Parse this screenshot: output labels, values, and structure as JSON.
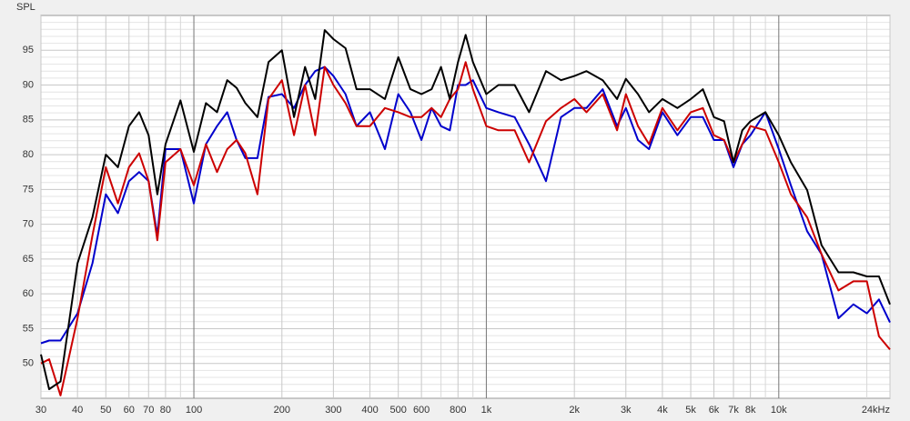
{
  "chart_data": {
    "type": "line",
    "ylabel": "SPL",
    "xscale": "log",
    "grid": true,
    "x": [
      30,
      32,
      35,
      40,
      45,
      50,
      55,
      60,
      65,
      70,
      75,
      80,
      90,
      100,
      110,
      120,
      130,
      140,
      150,
      165,
      180,
      200,
      220,
      240,
      260,
      280,
      300,
      330,
      360,
      400,
      450,
      500,
      550,
      600,
      650,
      700,
      750,
      800,
      850,
      900,
      1000,
      1100,
      1250,
      1400,
      1600,
      1800,
      2000,
      2200,
      2500,
      2800,
      3000,
      3300,
      3600,
      4000,
      4500,
      5000,
      5500,
      6000,
      6500,
      7000,
      7500,
      8000,
      9000,
      10000,
      11000,
      12500,
      14000,
      16000,
      18000,
      20000,
      22000,
      24000
    ],
    "series": [
      {
        "color": "#000000",
        "values": [
          51.3,
          46.3,
          47.4,
          64.4,
          71,
          80,
          78.2,
          84.1,
          86.1,
          82.8,
          74.3,
          81.5,
          87.8,
          80.4,
          87.4,
          86.1,
          90.7,
          89.6,
          87.4,
          85.4,
          93.3,
          95,
          85.4,
          92.6,
          88,
          97.9,
          96.6,
          95.3,
          89.4,
          89.4,
          88,
          94,
          89.4,
          88.7,
          89.4,
          92.6,
          88,
          93.3,
          97.2,
          93.3,
          88.7,
          90,
          90,
          86.1,
          92,
          90.7,
          91.3,
          92,
          90.7,
          88,
          90.9,
          88.7,
          86.1,
          88,
          86.7,
          88,
          89.4,
          85.4,
          84.8,
          78.9,
          83.5,
          84.8,
          86.1,
          82.8,
          78.9,
          74.9,
          67,
          63.1,
          63.1,
          62.5,
          62.5,
          58.5
        ]
      },
      {
        "color": "#cc0000",
        "values": [
          50,
          50.6,
          45.4,
          56.5,
          68.4,
          78.2,
          73,
          78.2,
          80.2,
          76.2,
          67.7,
          78.9,
          80.8,
          75.6,
          81.5,
          77.5,
          80.8,
          82.1,
          80.2,
          74.3,
          88,
          90.7,
          82.8,
          90,
          82.8,
          92.6,
          90,
          87.4,
          84.1,
          84.1,
          86.7,
          86.1,
          85.4,
          85.4,
          86.7,
          85.4,
          88,
          89.4,
          93.3,
          89.4,
          84.1,
          83.5,
          83.5,
          78.9,
          84.8,
          86.7,
          88,
          86.1,
          88.7,
          83.5,
          88.7,
          84.1,
          81.5,
          86.7,
          83.5,
          86.1,
          86.7,
          82.8,
          82.1,
          78.9,
          81.5,
          84.1,
          83.5,
          78.9,
          74.3,
          71,
          65.7,
          60.5,
          61.8,
          61.8,
          53.9,
          52
        ]
      },
      {
        "color": "#0000cc",
        "values": [
          52.9,
          53.3,
          53.3,
          57.2,
          64.4,
          74.3,
          71.6,
          76.2,
          77.5,
          76.2,
          68.4,
          80.8,
          80.8,
          73,
          81.5,
          84.1,
          86.1,
          82.1,
          79.5,
          79.5,
          88.3,
          88.7,
          86.7,
          90,
          92,
          92.6,
          91.3,
          88.7,
          84.1,
          86.1,
          80.8,
          88.7,
          86.1,
          82.1,
          86.7,
          84.1,
          83.5,
          90,
          90,
          90.7,
          86.7,
          86.1,
          85.4,
          81.5,
          76.2,
          85.4,
          86.7,
          86.7,
          89.4,
          84.1,
          86.7,
          82.1,
          80.8,
          86.1,
          82.8,
          85.4,
          85.4,
          82.1,
          82.1,
          78.2,
          81.5,
          82.8,
          86.1,
          80.8,
          75.6,
          69,
          65.7,
          56.5,
          58.5,
          57.2,
          59.2,
          55.9
        ]
      }
    ],
    "xlim": [
      30,
      24000
    ],
    "xticks": [
      30,
      40,
      50,
      60,
      70,
      80,
      100,
      200,
      300,
      400,
      500,
      600,
      800,
      {
        "value": 1000,
        "label": "1k"
      },
      {
        "value": 2000,
        "label": "2k"
      },
      {
        "value": 3000,
        "label": "3k"
      },
      {
        "value": 4000,
        "label": "4k"
      },
      {
        "value": 5000,
        "label": "5k"
      },
      {
        "value": 6000,
        "label": "6k"
      },
      {
        "value": 7000,
        "label": "7k"
      },
      {
        "value": 8000,
        "label": "8k"
      },
      {
        "value": 10000,
        "label": "10k"
      },
      {
        "value": 24000,
        "label": "24kHz"
      }
    ],
    "xminor": [
      90,
      700,
      900,
      9000,
      20000
    ],
    "ylim": [
      45,
      100
    ],
    "yticks": [
      50,
      55,
      60,
      65,
      70,
      75,
      80,
      85,
      90,
      95
    ],
    "yminor": [
      46,
      47,
      48,
      49,
      51,
      52,
      53,
      54,
      56,
      57,
      58,
      59,
      61,
      62,
      63,
      64,
      66,
      67,
      68,
      69,
      71,
      72,
      73,
      74,
      76,
      77,
      78,
      79,
      81,
      82,
      83,
      84,
      86,
      87,
      88,
      89,
      91,
      92,
      93,
      94,
      96,
      97,
      98,
      99
    ]
  }
}
